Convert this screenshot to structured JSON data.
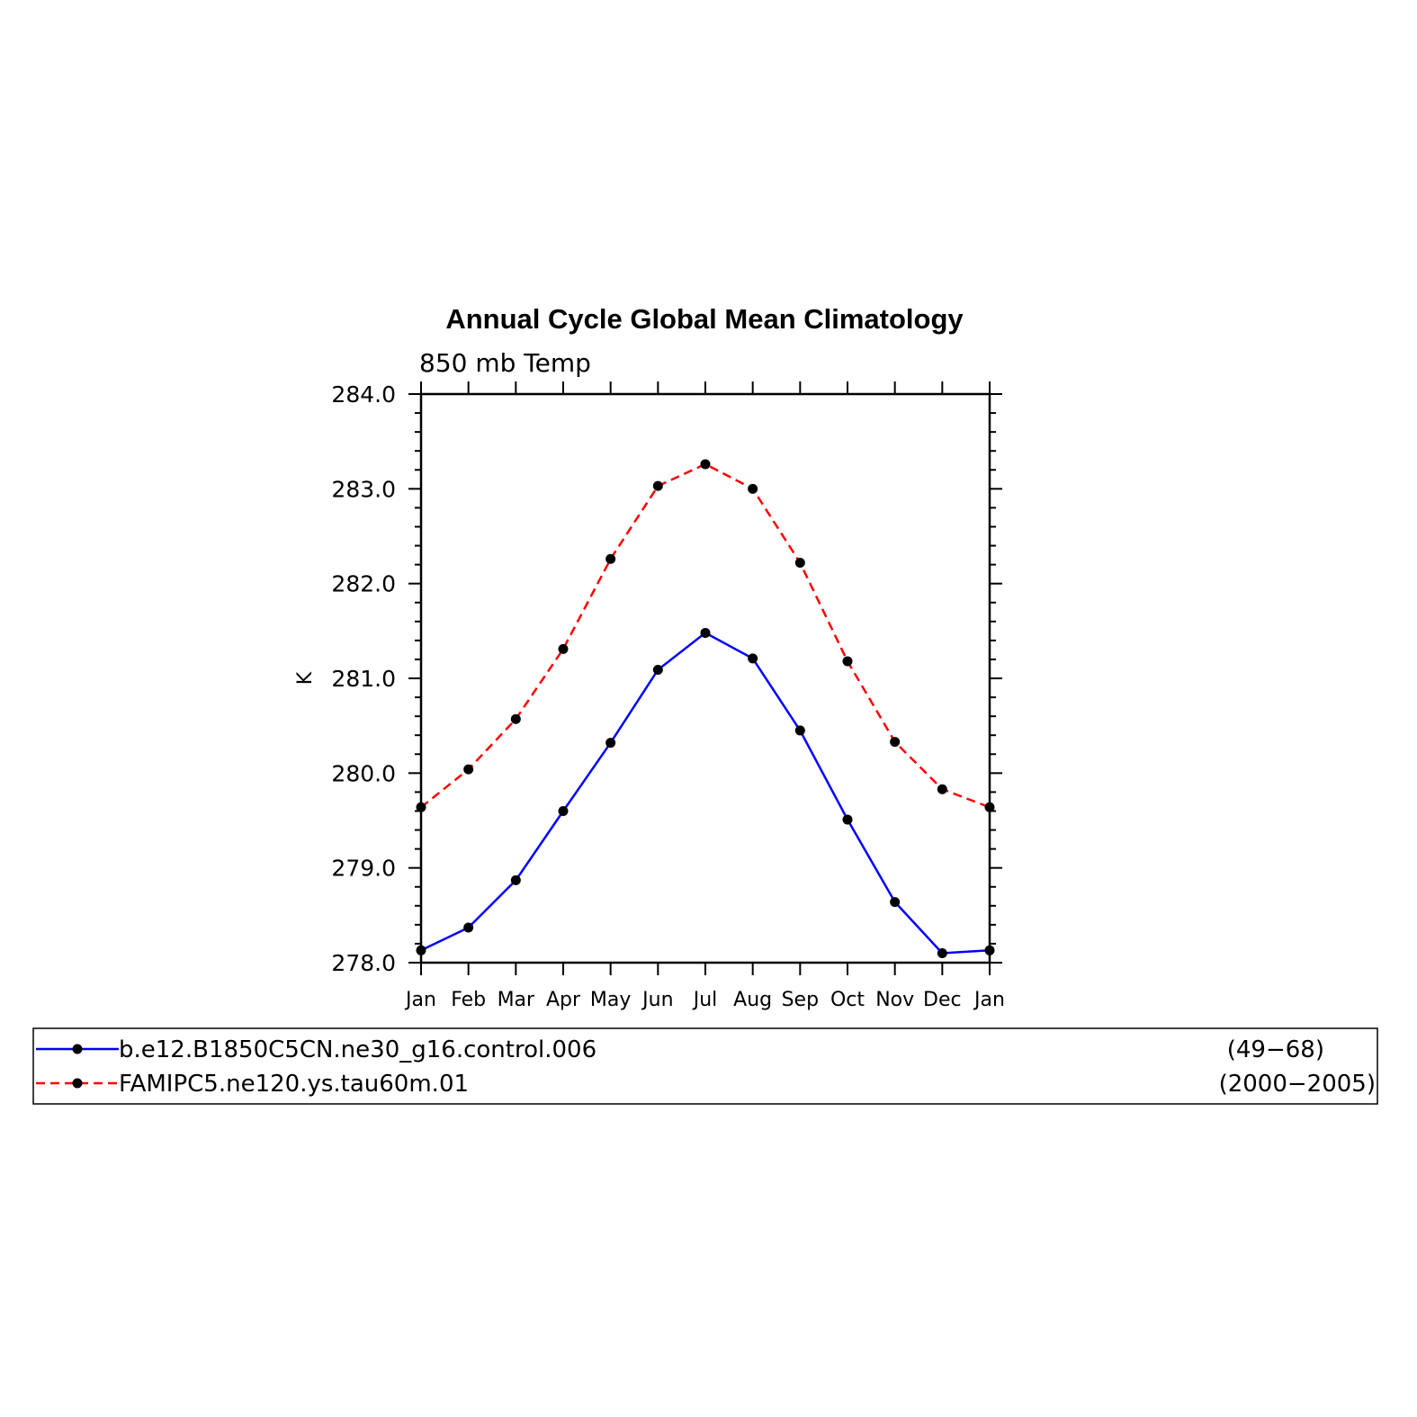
{
  "chart_data": {
    "type": "line",
    "title": "Annual Cycle Global Mean Climatology",
    "subtitle": "850 mb Temp",
    "ylabel": "K",
    "xlabel": "",
    "categories": [
      "Jan",
      "Feb",
      "Mar",
      "Apr",
      "May",
      "Jun",
      "Jul",
      "Aug",
      "Sep",
      "Oct",
      "Nov",
      "Dec",
      "Jan"
    ],
    "ylim": [
      278.0,
      284.0
    ],
    "yticks": [
      "278.0",
      "279.0",
      "280.0",
      "281.0",
      "282.0",
      "283.0",
      "284.0"
    ],
    "grid": false,
    "legend_position": "bottom",
    "series": [
      {
        "name": "b.e12.B1850C5CN.ne30_g16.control.006",
        "period": "(49−68)",
        "color": "#0000ff",
        "dash": "solid",
        "values": [
          278.13,
          278.37,
          278.87,
          279.6,
          280.32,
          281.09,
          281.48,
          281.21,
          280.45,
          279.51,
          278.64,
          278.1,
          278.13
        ]
      },
      {
        "name": "FAMIPC5.ne120.ys.tau60m.01",
        "period": "(2000−2005)",
        "color": "#ff0000",
        "dash": "dashed",
        "values": [
          279.64,
          280.04,
          280.57,
          281.31,
          282.26,
          283.03,
          283.26,
          283.0,
          282.22,
          281.18,
          280.33,
          279.83,
          279.64
        ]
      }
    ]
  }
}
